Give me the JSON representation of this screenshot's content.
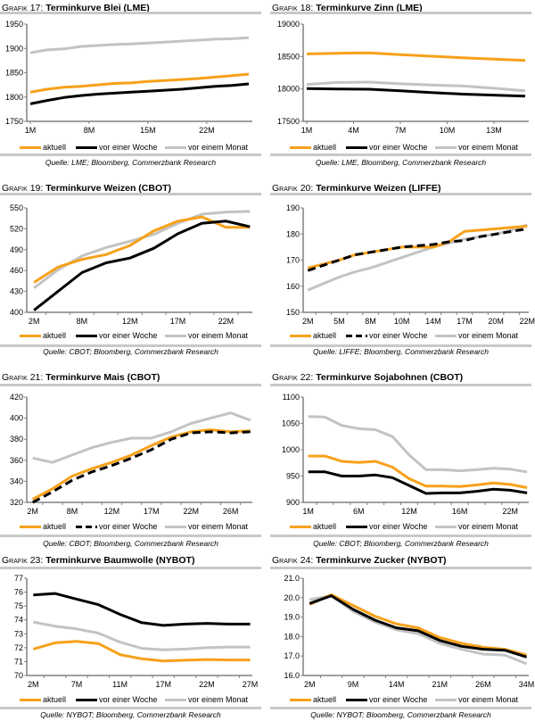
{
  "colors": {
    "aktuell": "#F7A11A",
    "vor_einer_woche": "#000000",
    "vor_einem_monat": "#C3C3C3",
    "rule": "#C8C8C8",
    "axis": "#808080"
  },
  "legend_labels": [
    "aktuell",
    "vor einer Woche",
    "vor einem Monat"
  ],
  "chart_data": [
    {
      "type": "line",
      "prefix": "Grafik 17:",
      "title": "Terminkurve Blei (LME)",
      "source": "Quelle: LME; Bloomberg, Commerzbank Research",
      "x": [
        1,
        3,
        5,
        7,
        9,
        11,
        13,
        15,
        17,
        19,
        21,
        23,
        25,
        27
      ],
      "xticks": [
        1,
        8,
        15,
        22
      ],
      "xtick_labels": [
        "1M",
        "8M",
        "15M",
        "22M"
      ],
      "ylim": [
        1750,
        1950
      ],
      "yticks": [
        1750,
        1800,
        1850,
        1900,
        1950
      ],
      "ytick_labels": [
        "1750",
        "1800",
        "1850",
        "1900",
        "1950"
      ],
      "series": [
        {
          "name": "aktuell",
          "style": "solid",
          "values": [
            1810,
            1816,
            1820,
            1822,
            1825,
            1828,
            1829,
            1832,
            1834,
            1836,
            1838,
            1841,
            1844,
            1847
          ]
        },
        {
          "name": "vor einer Woche",
          "style": "solid",
          "values": [
            1786,
            1793,
            1799,
            1803,
            1806,
            1808,
            1810,
            1812,
            1814,
            1816,
            1819,
            1822,
            1824,
            1827
          ]
        },
        {
          "name": "vor einem Monat",
          "style": "solid",
          "values": [
            1891,
            1897,
            1899,
            1904,
            1906,
            1908,
            1909,
            1911,
            1913,
            1915,
            1917,
            1919,
            1920,
            1922
          ]
        }
      ]
    },
    {
      "type": "line",
      "prefix": "Grafik 18:",
      "title": "Terminkurve Zinn (LME)",
      "source": "Quelle: LME, Bloomberg, Commerzbank Research",
      "x": [
        1,
        3,
        5,
        7,
        9,
        11,
        13,
        15
      ],
      "xticks": [
        1,
        4,
        7,
        10,
        13
      ],
      "xtick_labels": [
        "1M",
        "4M",
        "7M",
        "10M",
        "13M"
      ],
      "ylim": [
        17500,
        19000
      ],
      "yticks": [
        17500,
        18000,
        18500,
        19000
      ],
      "ytick_labels": [
        "17500",
        "18000",
        "18500",
        "19000"
      ],
      "series": [
        {
          "name": "aktuell",
          "style": "solid",
          "values": [
            18540,
            18550,
            18555,
            18530,
            18505,
            18480,
            18460,
            18440
          ]
        },
        {
          "name": "vor einer Woche",
          "style": "solid",
          "values": [
            18005,
            18000,
            17995,
            17970,
            17945,
            17920,
            17905,
            17890
          ]
        },
        {
          "name": "vor einem Monat",
          "style": "solid",
          "values": [
            18070,
            18100,
            18105,
            18080,
            18060,
            18045,
            18010,
            17970
          ]
        }
      ]
    },
    {
      "type": "line",
      "prefix": "Grafik 19:",
      "title": "Terminkurve Weizen (CBOT)",
      "source": "Quelle: CBOT; Bloomberg, Commerzbank Research",
      "categories": [
        "2M",
        "",
        "8M",
        "",
        "12M",
        "",
        "17M",
        "",
        "22M",
        ""
      ],
      "ylim": [
        400,
        550
      ],
      "yticks": [
        400,
        430,
        460,
        490,
        520,
        550
      ],
      "ytick_labels": [
        "400",
        "430",
        "460",
        "490",
        "520",
        "550"
      ],
      "series": [
        {
          "name": "aktuell",
          "style": "solid",
          "values": [
            443,
            465,
            476,
            483,
            496,
            517,
            531,
            537,
            522,
            522
          ]
        },
        {
          "name": "vor einer Woche",
          "style": "solid",
          "values": [
            403,
            430,
            457,
            471,
            478,
            492,
            513,
            528,
            531,
            523
          ]
        },
        {
          "name": "vor einem Monat",
          "style": "solid",
          "values": [
            435,
            461,
            481,
            493,
            502,
            512,
            528,
            541,
            544,
            545
          ]
        }
      ]
    },
    {
      "type": "line",
      "prefix": "Grafik 20:",
      "title": "Terminkurve Weizen (LIFFE)",
      "source": "Quelle: LIFFE; Bloomberg, Commerzbank Research",
      "categories": [
        "2M",
        "",
        "5M",
        "",
        "8M",
        "",
        "10M",
        "",
        "14M",
        "",
        "17M",
        "",
        "20M",
        "",
        "22M"
      ],
      "ylim": [
        150,
        190
      ],
      "yticks": [
        150,
        160,
        170,
        180,
        190
      ],
      "ytick_labels": [
        "150",
        "160",
        "170",
        "180",
        "190"
      ],
      "series": [
        {
          "name": "aktuell",
          "style": "solid",
          "values": [
            167,
            168.5,
            170,
            172,
            173,
            174,
            175,
            175,
            175,
            177,
            181,
            181.5,
            182,
            182.5,
            183
          ]
        },
        {
          "name": "vor einer Woche",
          "style": "dashed",
          "values": [
            166,
            168,
            170,
            172,
            173,
            174,
            175,
            175.5,
            176,
            177,
            177.5,
            179,
            180,
            181,
            182
          ]
        },
        {
          "name": "vor einem Monat",
          "style": "solid",
          "values": [
            158.5,
            161,
            163.5,
            165.5,
            167,
            169,
            171,
            173,
            175,
            176.5,
            178,
            179,
            180,
            181.5,
            183.5
          ]
        }
      ]
    },
    {
      "type": "line",
      "prefix": "Grafik 21:",
      "title": "Terminkurve Mais (CBOT)",
      "source": "Quelle: CBOT; Bloomberg, Commerzbank Research",
      "categories": [
        "2M",
        "",
        "8M",
        "",
        "12M",
        "",
        "17M",
        "",
        "22M",
        "",
        "26M",
        ""
      ],
      "ylim": [
        320,
        420
      ],
      "yticks": [
        320,
        340,
        360,
        380,
        400,
        420
      ],
      "ytick_labels": [
        "320",
        "340",
        "360",
        "380",
        "400",
        "420"
      ],
      "series": [
        {
          "name": "aktuell",
          "style": "solid",
          "values": [
            323,
            333,
            345,
            352,
            358,
            365,
            374,
            382,
            387,
            389,
            387,
            388
          ]
        },
        {
          "name": "vor einer Woche",
          "style": "dashed",
          "values": [
            320,
            330,
            341,
            349,
            355,
            362,
            370,
            380,
            386,
            387,
            386,
            387
          ]
        },
        {
          "name": "vor einem Monat",
          "style": "solid",
          "values": [
            362,
            358,
            365,
            372,
            377,
            381,
            381,
            387,
            395,
            400,
            405,
            398
          ]
        }
      ]
    },
    {
      "type": "line",
      "prefix": "Grafik 22:",
      "title": "Terminkurve Sojabohnen (CBOT)",
      "source": "Quelle: CBOT; Bloomberg, Commerzbank Research",
      "categories": [
        "1M",
        "",
        "",
        "6M",
        "",
        "",
        "12M",
        "",
        "",
        "16M",
        "",
        "",
        "22M",
        ""
      ],
      "ylim": [
        900,
        1100
      ],
      "yticks": [
        900,
        950,
        1000,
        1050,
        1100
      ],
      "ytick_labels": [
        "900",
        "950",
        "1000",
        "1050",
        "1100"
      ],
      "series": [
        {
          "name": "aktuell",
          "style": "solid",
          "values": [
            988,
            988,
            978,
            976,
            978,
            967,
            945,
            931,
            931,
            930,
            933,
            937,
            934,
            928
          ]
        },
        {
          "name": "vor einer Woche",
          "style": "solid",
          "values": [
            958,
            958,
            950,
            950,
            952,
            947,
            932,
            917,
            918,
            918,
            921,
            925,
            923,
            918
          ]
        },
        {
          "name": "vor einem Monat",
          "style": "solid",
          "values": [
            1063,
            1062,
            1046,
            1040,
            1038,
            1025,
            990,
            962,
            962,
            960,
            962,
            965,
            963,
            958
          ]
        }
      ]
    },
    {
      "type": "line",
      "prefix": "Grafik 23:",
      "title": "Terminkurve Baumwolle (NYBOT)",
      "source": "Quelle: NYBOT; Bloomberg, Commerzbank Research",
      "categories": [
        "2M",
        "",
        "7M",
        "",
        "11M",
        "",
        "17M",
        "",
        "22M",
        "",
        "27M"
      ],
      "ylim": [
        70,
        77
      ],
      "yticks": [
        70,
        71,
        72,
        73,
        74,
        75,
        76,
        77
      ],
      "ytick_labels": [
        "70",
        "71",
        "72",
        "73",
        "74",
        "75",
        "76",
        "77"
      ],
      "series": [
        {
          "name": "aktuell",
          "style": "solid",
          "values": [
            71.9,
            72.35,
            72.45,
            72.3,
            71.5,
            71.2,
            71.05,
            71.1,
            71.15,
            71.12,
            71.12
          ]
        },
        {
          "name": "vor einer Woche",
          "style": "solid",
          "values": [
            75.8,
            75.9,
            75.5,
            75.1,
            74.4,
            73.8,
            73.6,
            73.7,
            73.75,
            73.7,
            73.7
          ]
        },
        {
          "name": "vor einem Monat",
          "style": "solid",
          "values": [
            73.85,
            73.55,
            73.35,
            73.05,
            72.4,
            71.95,
            71.85,
            71.9,
            72.0,
            72.05,
            72.05
          ]
        }
      ]
    },
    {
      "type": "line",
      "prefix": "Grafik 24:",
      "title": "Terminkurve Zucker (NYBOT)",
      "source": "Quelle: NYBOT; Bloomberg, Commerzbank Research",
      "categories": [
        "2M",
        "",
        "9M",
        "",
        "14M",
        "",
        "21M",
        "",
        "26M",
        "",
        "34M"
      ],
      "ylim": [
        16,
        21
      ],
      "yticks": [
        16,
        17,
        18,
        19,
        20,
        21
      ],
      "ytick_labels": [
        "16.0",
        "17.0",
        "18.0",
        "19.0",
        "20.0",
        "21.0"
      ],
      "series": [
        {
          "name": "aktuell",
          "style": "solid",
          "values": [
            19.65,
            20.15,
            19.6,
            19.05,
            18.65,
            18.45,
            17.95,
            17.65,
            17.45,
            17.35,
            17.05
          ]
        },
        {
          "name": "vor einer Woche",
          "style": "solid",
          "values": [
            19.7,
            20.1,
            19.4,
            18.85,
            18.45,
            18.3,
            17.8,
            17.5,
            17.35,
            17.3,
            16.95
          ]
        },
        {
          "name": "vor einem Monat",
          "style": "solid",
          "values": [
            19.9,
            20.1,
            19.3,
            18.75,
            18.35,
            18.15,
            17.65,
            17.35,
            17.1,
            17.05,
            16.6
          ]
        }
      ]
    }
  ]
}
